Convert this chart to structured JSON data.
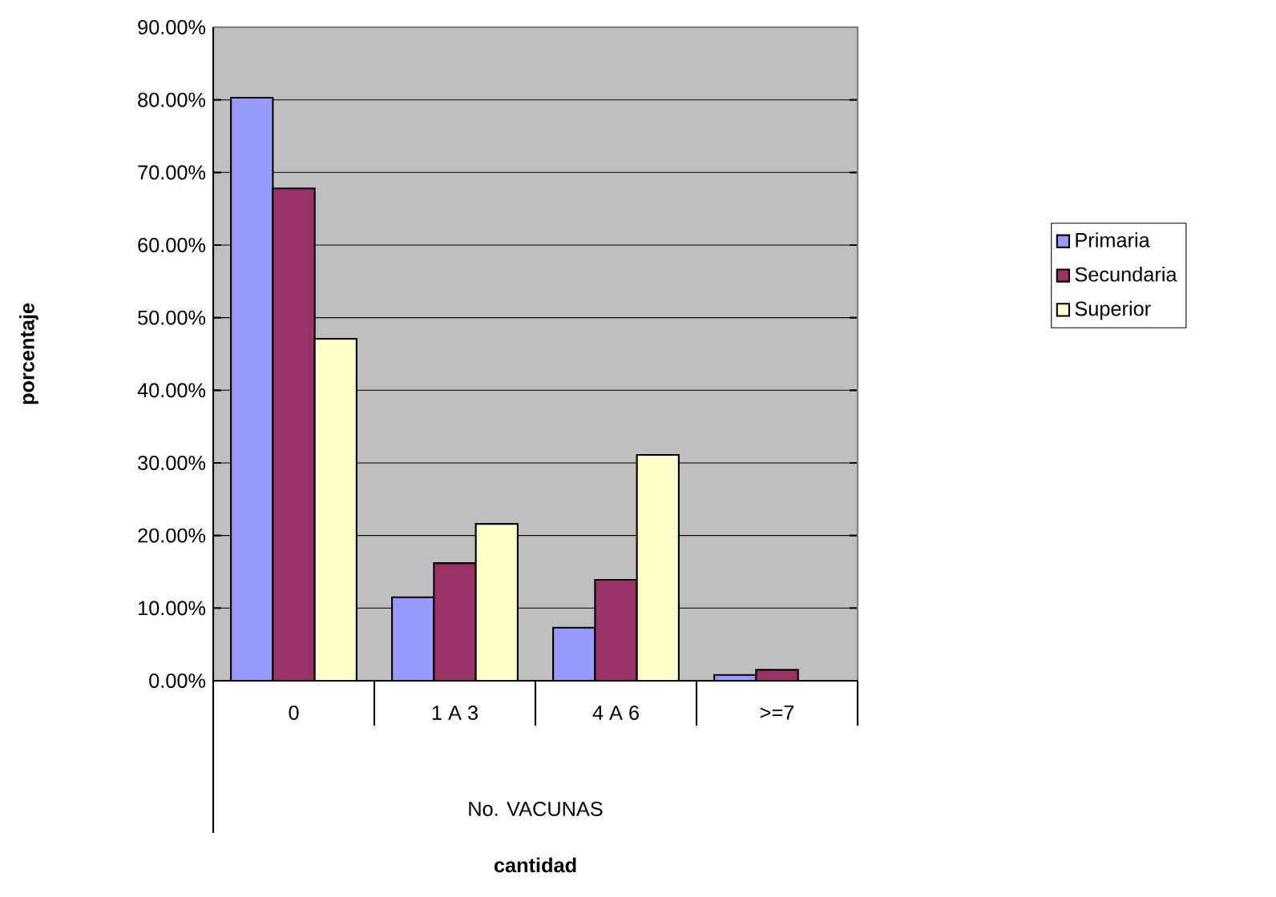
{
  "chart_data": {
    "type": "bar",
    "ylabel": "porcentaje",
    "categories": [
      "0",
      "1 A 3",
      "4 A 6",
      ">=7"
    ],
    "annotations": [
      "No. VACUNAS",
      "**cantidad**"
    ],
    "series": [
      {
        "name": "Primaria",
        "color": "#9999ff",
        "values": [
          80.3,
          11.5,
          7.3,
          0.8
        ]
      },
      {
        "name": "Secundaria",
        "color": "#993366",
        "values": [
          67.8,
          16.2,
          13.9,
          1.5
        ]
      },
      {
        "name": "Superior",
        "color": "#ffffcc",
        "values": [
          47.1,
          21.6,
          31.1,
          null
        ]
      }
    ],
    "ylim": [
      0,
      90
    ],
    "yticks": [
      {
        "value": 0,
        "label": "0.00%"
      },
      {
        "value": 10,
        "label": "10.00%"
      },
      {
        "value": 20,
        "label": "20.00%"
      },
      {
        "value": 30,
        "label": "30.00%"
      },
      {
        "value": 40,
        "label": "40.00%"
      },
      {
        "value": 50,
        "label": "50.00%"
      },
      {
        "value": 60,
        "label": "60.00%"
      },
      {
        "value": 70,
        "label": "70.00%"
      },
      {
        "value": 80,
        "label": "80.00%"
      },
      {
        "value": 90,
        "label": "90.00%"
      }
    ],
    "grid": "y",
    "legend": "right"
  }
}
